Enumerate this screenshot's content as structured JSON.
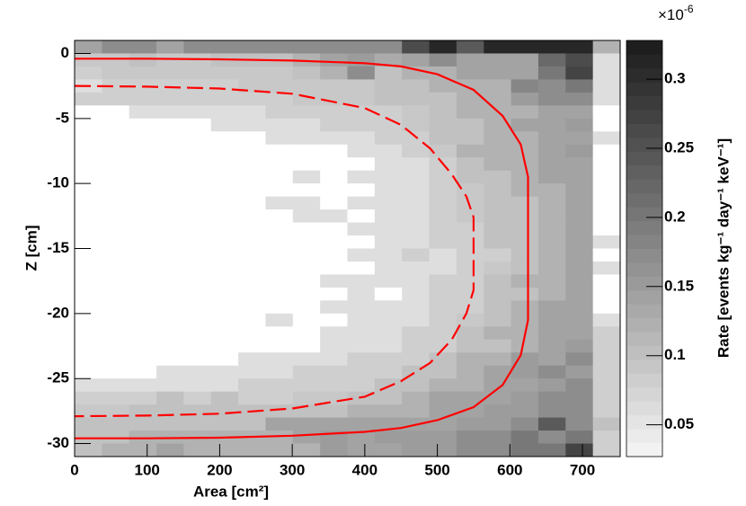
{
  "chart_data": {
    "type": "heatmap",
    "x_label": "Area [cm²]",
    "y_label": "Z [cm]",
    "colorbar_label": "Rate [events kg⁻¹ day⁻¹ keV⁻¹]",
    "colorbar_multiplier": "×10",
    "colorbar_exponent": "-6",
    "xbins": [
      0,
      37.6,
      75.2,
      112.8,
      150.4,
      188,
      225.6,
      263.2,
      300.8,
      338.4,
      376,
      413.6,
      451.2,
      488.8,
      526.4,
      564,
      601.6,
      639.2,
      676.8,
      714.4,
      752
    ],
    "ybins": [
      1,
      0,
      -1,
      -2,
      -3,
      -4,
      -5,
      -6,
      -7,
      -8,
      -9,
      -10,
      -11,
      -12,
      -13,
      -14,
      -15,
      -16,
      -17,
      -18,
      -19,
      -20,
      -21,
      -22,
      -23,
      -24,
      -25,
      -26,
      -27,
      -28,
      -29,
      -30,
      -31
    ],
    "z": [
      [
        0.14,
        0.17,
        0.17,
        0.14,
        0.17,
        0.17,
        0.17,
        0.17,
        0.17,
        0.17,
        0.17,
        0.17,
        0.26,
        0.31,
        0.24,
        0.31,
        0.31,
        0.31,
        0.31,
        0.12
      ],
      [
        0.09,
        0.09,
        0.1,
        0.09,
        0.09,
        0.1,
        0.1,
        0.1,
        0.12,
        0.14,
        0.15,
        0.13,
        0.14,
        0.17,
        0.14,
        0.14,
        0.14,
        0.22,
        0.26,
        0.06
      ],
      [
        0.08,
        0.09,
        0.09,
        0.09,
        0.09,
        0.09,
        0.09,
        0.09,
        0.1,
        0.12,
        0.17,
        0.1,
        0.12,
        0.12,
        0.14,
        0.14,
        0.14,
        0.2,
        0.27,
        0.06
      ],
      [
        0.06,
        0.08,
        0.08,
        0.08,
        0.08,
        0.08,
        0.09,
        0.09,
        0.09,
        0.09,
        0.09,
        0.1,
        0.1,
        0.12,
        0.12,
        0.12,
        0.18,
        0.17,
        0.2,
        0.06
      ],
      [
        0.08,
        0.08,
        0.08,
        0.08,
        0.08,
        0.08,
        0.08,
        0.08,
        0.09,
        0.09,
        0.09,
        0.1,
        0.1,
        0.1,
        0.12,
        0.12,
        0.15,
        0.17,
        0.17,
        0.06
      ],
      [
        0,
        0,
        0.06,
        0.06,
        0.06,
        0.06,
        0.06,
        0.08,
        0.08,
        0.08,
        0.08,
        0.08,
        0.09,
        0.1,
        0.12,
        0.12,
        0.12,
        0.14,
        0.14,
        0
      ],
      [
        0,
        0,
        0,
        0,
        0,
        0.06,
        0.06,
        0.06,
        0.06,
        0.08,
        0.08,
        0.08,
        0.09,
        0.1,
        0.1,
        0.12,
        0.14,
        0.14,
        0.15,
        0
      ],
      [
        0,
        0,
        0,
        0,
        0,
        0,
        0,
        0.06,
        0.06,
        0.06,
        0.06,
        0.08,
        0.08,
        0.1,
        0.1,
        0.12,
        0.12,
        0.14,
        0.14,
        0.06
      ],
      [
        0,
        0,
        0,
        0,
        0,
        0,
        0,
        0,
        0,
        0,
        0.06,
        0.06,
        0.08,
        0.09,
        0.12,
        0.12,
        0.12,
        0.14,
        0.15,
        0
      ],
      [
        0,
        0,
        0,
        0,
        0,
        0,
        0,
        0,
        0,
        0,
        0,
        0.06,
        0.06,
        0.08,
        0.1,
        0.12,
        0.12,
        0.14,
        0.14,
        0
      ],
      [
        0,
        0,
        0,
        0,
        0,
        0,
        0,
        0,
        0.06,
        0,
        0.06,
        0.06,
        0.06,
        0.08,
        0.1,
        0.1,
        0.12,
        0.14,
        0.14,
        0
      ],
      [
        0,
        0,
        0,
        0,
        0,
        0,
        0,
        0,
        0,
        0,
        0,
        0.06,
        0.06,
        0.08,
        0.09,
        0.1,
        0.12,
        0.12,
        0.14,
        0
      ],
      [
        0,
        0,
        0,
        0,
        0,
        0,
        0,
        0.06,
        0.06,
        0,
        0.06,
        0.06,
        0.06,
        0.08,
        0.09,
        0.1,
        0.1,
        0.12,
        0.14,
        0
      ],
      [
        0,
        0,
        0,
        0,
        0,
        0,
        0,
        0,
        0.06,
        0.06,
        0,
        0.06,
        0.06,
        0.08,
        0.09,
        0.1,
        0.1,
        0.12,
        0.14,
        0
      ],
      [
        0,
        0,
        0,
        0,
        0,
        0,
        0,
        0,
        0,
        0,
        0.06,
        0.06,
        0.06,
        0.08,
        0.08,
        0.1,
        0.1,
        0.12,
        0.14,
        0
      ],
      [
        0,
        0,
        0,
        0,
        0,
        0,
        0,
        0,
        0,
        0,
        0,
        0.06,
        0.06,
        0.08,
        0.08,
        0.1,
        0.1,
        0.12,
        0.14,
        0.06
      ],
      [
        0,
        0,
        0,
        0,
        0,
        0,
        0,
        0,
        0,
        0,
        0.06,
        0.06,
        0.08,
        0.06,
        0.08,
        0.08,
        0.1,
        0.12,
        0.14,
        0
      ],
      [
        0,
        0,
        0,
        0,
        0,
        0,
        0,
        0,
        0,
        0,
        0,
        0.06,
        0.06,
        0.06,
        0.08,
        0.09,
        0.1,
        0.12,
        0.14,
        0.06
      ],
      [
        0,
        0,
        0,
        0,
        0,
        0,
        0,
        0,
        0,
        0.06,
        0.06,
        0.06,
        0.06,
        0.08,
        0.08,
        0.1,
        0.12,
        0.12,
        0.14,
        0
      ],
      [
        0,
        0,
        0,
        0,
        0,
        0,
        0,
        0,
        0,
        0,
        0.06,
        0,
        0.06,
        0.08,
        0.08,
        0.1,
        0.1,
        0.12,
        0.14,
        0
      ],
      [
        0,
        0,
        0,
        0,
        0,
        0,
        0,
        0,
        0,
        0.06,
        0.06,
        0.06,
        0.06,
        0.08,
        0.08,
        0.1,
        0.12,
        0.14,
        0.14,
        0
      ],
      [
        0,
        0,
        0,
        0,
        0,
        0,
        0,
        0.06,
        0,
        0,
        0.06,
        0.06,
        0.06,
        0.08,
        0.09,
        0.1,
        0.12,
        0.14,
        0.14,
        0.06
      ],
      [
        0,
        0,
        0,
        0,
        0,
        0,
        0,
        0,
        0,
        0.06,
        0.06,
        0.06,
        0.08,
        0.08,
        0.1,
        0.12,
        0.12,
        0.14,
        0.14,
        0.08
      ],
      [
        0,
        0,
        0,
        0,
        0,
        0,
        0,
        0,
        0,
        0.06,
        0.06,
        0.06,
        0.08,
        0.08,
        0.1,
        0.1,
        0.12,
        0.14,
        0.15,
        0.08
      ],
      [
        0,
        0,
        0,
        0,
        0,
        0,
        0.06,
        0.06,
        0.06,
        0.06,
        0.08,
        0.08,
        0.08,
        0.1,
        0.12,
        0.12,
        0.15,
        0.14,
        0.17,
        0.08
      ],
      [
        0,
        0,
        0,
        0.06,
        0.06,
        0.06,
        0.06,
        0.06,
        0.08,
        0.08,
        0.08,
        0.08,
        0.1,
        0.1,
        0.12,
        0.14,
        0.15,
        0.17,
        0.15,
        0.08
      ],
      [
        0.06,
        0.06,
        0.06,
        0.06,
        0.06,
        0.06,
        0.08,
        0.08,
        0.08,
        0.08,
        0.08,
        0.1,
        0.1,
        0.12,
        0.12,
        0.14,
        0.14,
        0.15,
        0.17,
        0.08
      ],
      [
        0.08,
        0.08,
        0.08,
        0.1,
        0.08,
        0.1,
        0.08,
        0.08,
        0.09,
        0.09,
        0.1,
        0.1,
        0.12,
        0.14,
        0.14,
        0.14,
        0.15,
        0.17,
        0.17,
        0.08
      ],
      [
        0.09,
        0.09,
        0.1,
        0.1,
        0.1,
        0.1,
        0.1,
        0.1,
        0.1,
        0.1,
        0.12,
        0.12,
        0.12,
        0.14,
        0.14,
        0.15,
        0.15,
        0.17,
        0.17,
        0.08
      ],
      [
        0.1,
        0.1,
        0.1,
        0.1,
        0.1,
        0.1,
        0.1,
        0.14,
        0.14,
        0.14,
        0.14,
        0.14,
        0.14,
        0.14,
        0.15,
        0.15,
        0.17,
        0.24,
        0.17,
        0.1
      ],
      [
        0.1,
        0.1,
        0.12,
        0.12,
        0.12,
        0.12,
        0.12,
        0.12,
        0.14,
        0.15,
        0.14,
        0.15,
        0.15,
        0.15,
        0.17,
        0.17,
        0.2,
        0.17,
        0.2,
        0.08
      ],
      [
        0.1,
        0.12,
        0.12,
        0.14,
        0.12,
        0.12,
        0.12,
        0.12,
        0.12,
        0.15,
        0.14,
        0.14,
        0.15,
        0.15,
        0.17,
        0.17,
        0.2,
        0.2,
        0.27,
        0.08
      ]
    ],
    "xlim": [
      0,
      752
    ],
    "ylim": [
      -31,
      1
    ],
    "zlim": [
      0.027,
      0.328
    ],
    "xticks": [
      0,
      100,
      200,
      300,
      400,
      500,
      600,
      700
    ],
    "yticks": [
      0,
      -5,
      -10,
      -15,
      -20,
      -25,
      -30
    ],
    "zticks": [
      0.05,
      0.1,
      0.15,
      0.2,
      0.25,
      0.3
    ],
    "contours": [
      {
        "style": "solid",
        "color": "#ff0000",
        "x": [
          0,
          100,
          200,
          300,
          400,
          450,
          500,
          550,
          590,
          615,
          625,
          625,
          615,
          590,
          550,
          500,
          450,
          400,
          300,
          200,
          100,
          0
        ],
        "y": [
          -0.4,
          -0.4,
          -0.45,
          -0.55,
          -0.75,
          -1,
          -1.6,
          -2.8,
          -4.8,
          -7,
          -9.5,
          -20.5,
          -23.2,
          -25.5,
          -27.2,
          -28.2,
          -28.8,
          -29.1,
          -29.4,
          -29.55,
          -29.6,
          -29.6
        ]
      },
      {
        "style": "dashed",
        "color": "#ff0000",
        "x": [
          0,
          100,
          200,
          300,
          400,
          450,
          490,
          520,
          540,
          550,
          550,
          540,
          520,
          490,
          450,
          400,
          300,
          200,
          100,
          0
        ],
        "y": [
          -2.5,
          -2.55,
          -2.7,
          -3.1,
          -4.2,
          -5.5,
          -7.3,
          -9.3,
          -11,
          -12.6,
          -18.2,
          -20,
          -22,
          -23.8,
          -25.2,
          -26.4,
          -27.3,
          -27.7,
          -27.85,
          -27.9
        ]
      }
    ]
  }
}
